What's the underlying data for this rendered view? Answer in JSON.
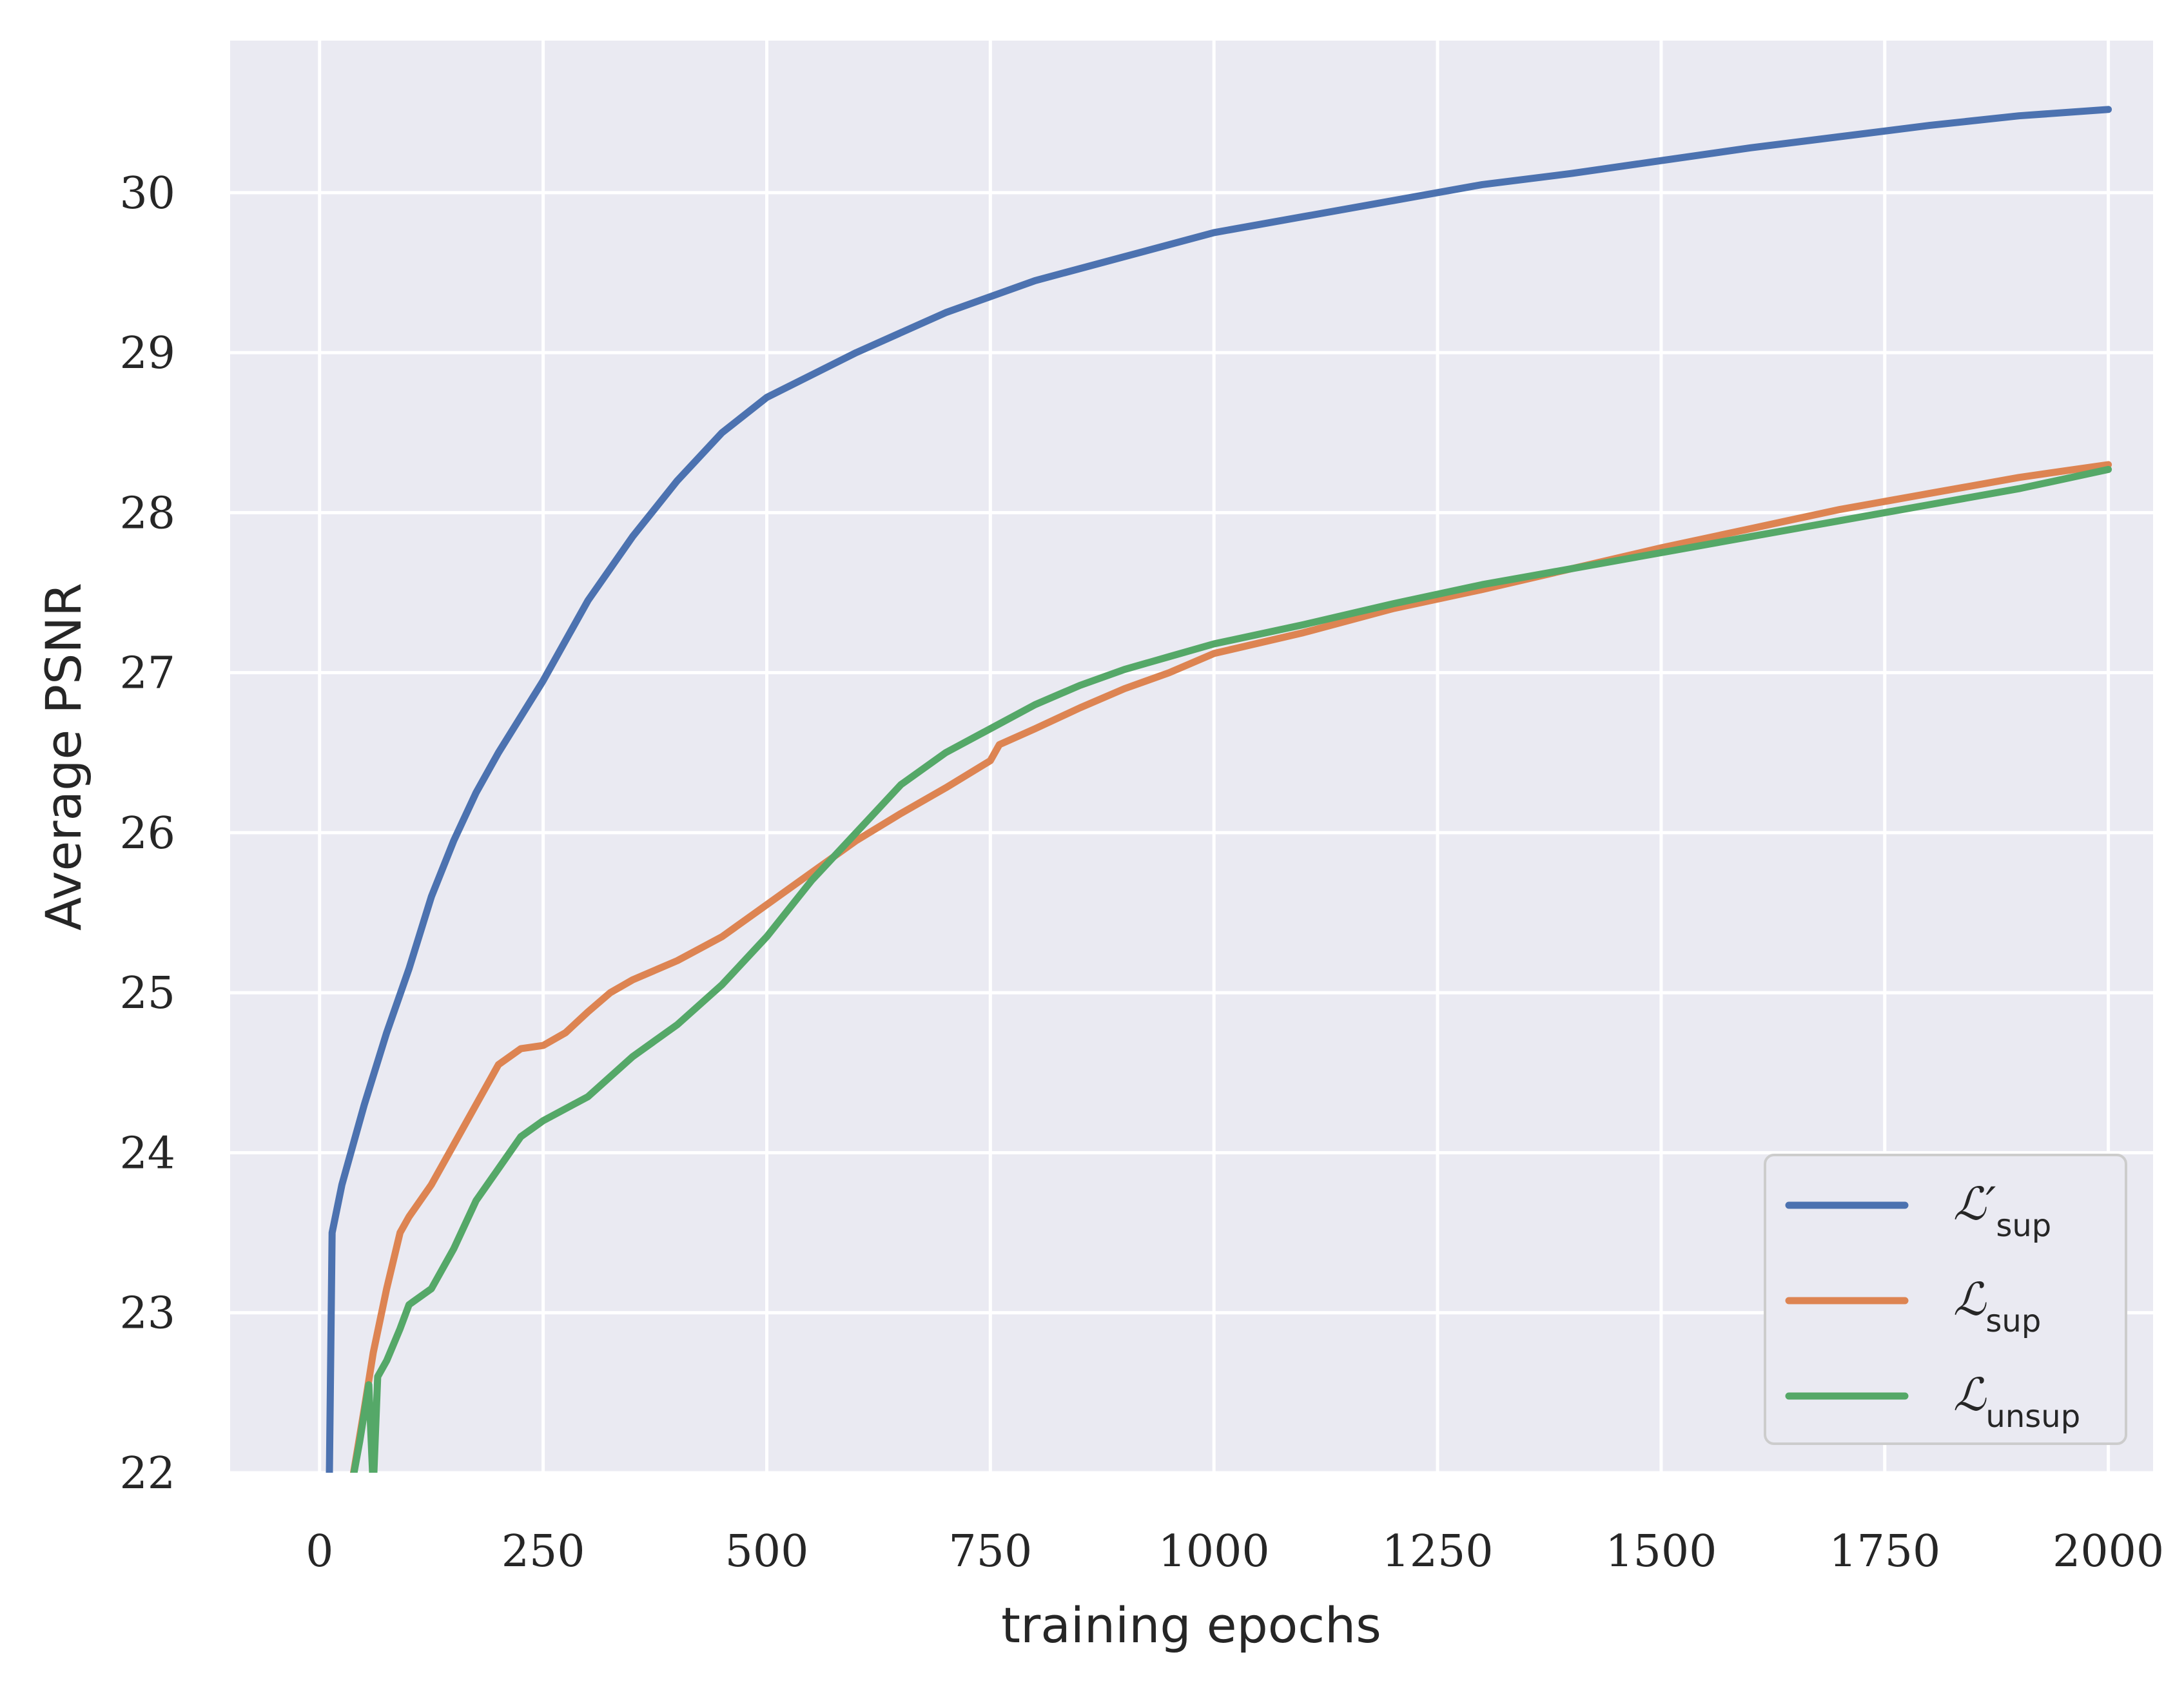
{
  "chart_data": {
    "type": "line",
    "title": "",
    "xlabel": "training epochs",
    "ylabel": "Average PSNR",
    "xlim": [
      -100,
      2050
    ],
    "ylim": [
      22,
      30.95
    ],
    "x_ticks": [
      0,
      250,
      500,
      750,
      1000,
      1250,
      1500,
      1750,
      2000
    ],
    "x_tick_labels": [
      "0",
      "250",
      "500",
      "750",
      "1000",
      "1250",
      "1500",
      "1750",
      "2000"
    ],
    "y_ticks": [
      22,
      23,
      24,
      25,
      26,
      27,
      28,
      29,
      30
    ],
    "y_tick_labels": [
      "22",
      "23",
      "24",
      "25",
      "26",
      "27",
      "28",
      "29",
      "30"
    ],
    "grid": true,
    "legend_position": "lower-right",
    "series": [
      {
        "name": "L'sup",
        "legend_main": "ℒ′",
        "legend_sub": "sup",
        "color": "#4c72b0",
        "points": [
          [
            10,
            21.5
          ],
          [
            14,
            23.5
          ],
          [
            25,
            23.8
          ],
          [
            40,
            24.1
          ],
          [
            50,
            24.3
          ],
          [
            75,
            24.75
          ],
          [
            100,
            25.15
          ],
          [
            125,
            25.6
          ],
          [
            150,
            25.95
          ],
          [
            175,
            26.25
          ],
          [
            200,
            26.5
          ],
          [
            250,
            26.95
          ],
          [
            300,
            27.45
          ],
          [
            350,
            27.85
          ],
          [
            400,
            28.2
          ],
          [
            450,
            28.5
          ],
          [
            500,
            28.72
          ],
          [
            600,
            29.0
          ],
          [
            700,
            29.25
          ],
          [
            800,
            29.45
          ],
          [
            900,
            29.6
          ],
          [
            1000,
            29.75
          ],
          [
            1100,
            29.85
          ],
          [
            1200,
            29.95
          ],
          [
            1300,
            30.05
          ],
          [
            1400,
            30.12
          ],
          [
            1500,
            30.2
          ],
          [
            1600,
            30.28
          ],
          [
            1700,
            30.35
          ],
          [
            1800,
            30.42
          ],
          [
            1900,
            30.48
          ],
          [
            2000,
            30.52
          ]
        ]
      },
      {
        "name": "Lsup",
        "legend_main": "ℒ",
        "legend_sub": "sup",
        "color": "#dd8452",
        "points": [
          [
            38,
            22.0
          ],
          [
            50,
            22.4
          ],
          [
            60,
            22.75
          ],
          [
            75,
            23.15
          ],
          [
            90,
            23.5
          ],
          [
            100,
            23.6
          ],
          [
            125,
            23.8
          ],
          [
            150,
            24.05
          ],
          [
            175,
            24.3
          ],
          [
            200,
            24.55
          ],
          [
            225,
            24.65
          ],
          [
            250,
            24.67
          ],
          [
            275,
            24.75
          ],
          [
            300,
            24.88
          ],
          [
            325,
            25.0
          ],
          [
            350,
            25.08
          ],
          [
            400,
            25.2
          ],
          [
            450,
            25.35
          ],
          [
            500,
            25.55
          ],
          [
            550,
            25.75
          ],
          [
            600,
            25.95
          ],
          [
            650,
            26.12
          ],
          [
            700,
            26.28
          ],
          [
            750,
            26.45
          ],
          [
            760,
            26.55
          ],
          [
            800,
            26.65
          ],
          [
            850,
            26.78
          ],
          [
            900,
            26.9
          ],
          [
            950,
            27.0
          ],
          [
            1000,
            27.12
          ],
          [
            1100,
            27.25
          ],
          [
            1200,
            27.4
          ],
          [
            1300,
            27.52
          ],
          [
            1400,
            27.65
          ],
          [
            1500,
            27.78
          ],
          [
            1600,
            27.9
          ],
          [
            1700,
            28.02
          ],
          [
            1800,
            28.12
          ],
          [
            1900,
            28.22
          ],
          [
            2000,
            28.3
          ]
        ]
      },
      {
        "name": "Lunsup",
        "legend_main": "ℒ",
        "legend_sub": "unsup",
        "color": "#55a868",
        "points": [
          [
            32,
            21.8
          ],
          [
            45,
            22.2
          ],
          [
            55,
            22.55
          ],
          [
            60,
            21.9
          ],
          [
            65,
            22.6
          ],
          [
            75,
            22.7
          ],
          [
            90,
            22.9
          ],
          [
            100,
            23.05
          ],
          [
            125,
            23.15
          ],
          [
            150,
            23.4
          ],
          [
            175,
            23.7
          ],
          [
            200,
            23.9
          ],
          [
            225,
            24.1
          ],
          [
            250,
            24.2
          ],
          [
            300,
            24.35
          ],
          [
            350,
            24.6
          ],
          [
            400,
            24.8
          ],
          [
            450,
            25.05
          ],
          [
            500,
            25.35
          ],
          [
            550,
            25.7
          ],
          [
            600,
            26.0
          ],
          [
            650,
            26.3
          ],
          [
            700,
            26.5
          ],
          [
            750,
            26.65
          ],
          [
            800,
            26.8
          ],
          [
            850,
            26.92
          ],
          [
            900,
            27.02
          ],
          [
            950,
            27.1
          ],
          [
            1000,
            27.18
          ],
          [
            1100,
            27.3
          ],
          [
            1200,
            27.43
          ],
          [
            1300,
            27.55
          ],
          [
            1400,
            27.65
          ],
          [
            1500,
            27.75
          ],
          [
            1600,
            27.85
          ],
          [
            1700,
            27.95
          ],
          [
            1800,
            28.05
          ],
          [
            1900,
            28.15
          ],
          [
            2000,
            28.27
          ]
        ]
      }
    ]
  }
}
